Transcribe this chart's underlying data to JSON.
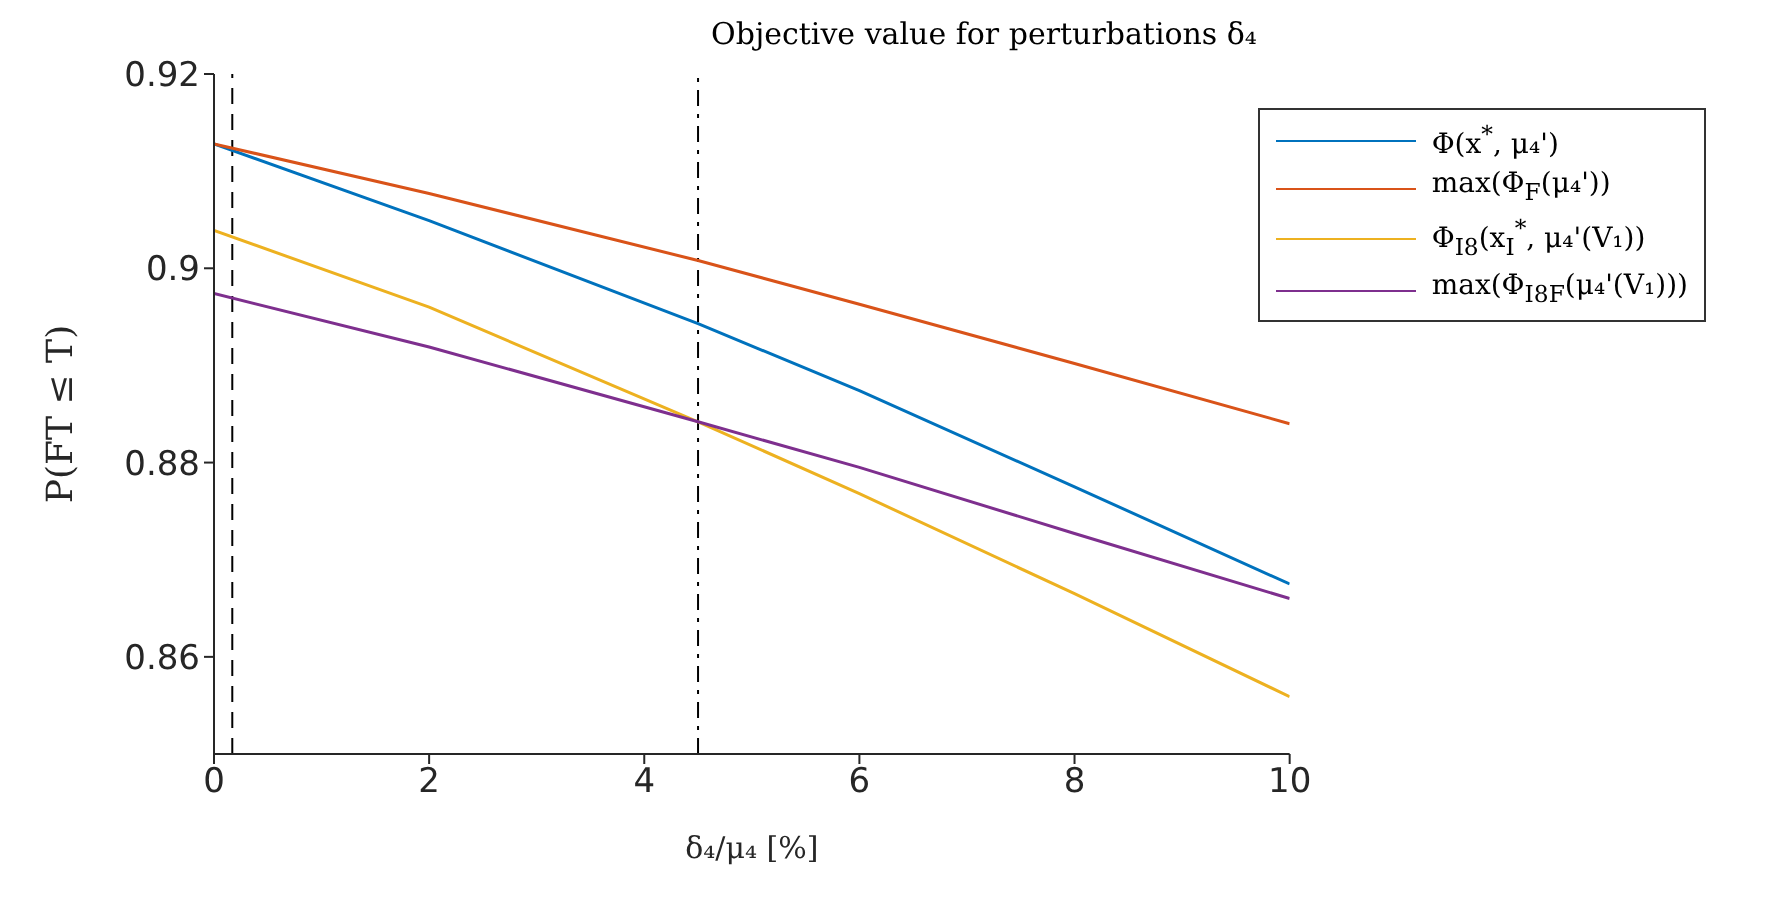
{
  "chart_data": {
    "type": "line",
    "title": "Objective value for perturbations δ₄",
    "xlabel": "δ₄/μ₄ [%]",
    "ylabel": "P(FT ≤ T)",
    "x": [
      0,
      2,
      4.5,
      6,
      8,
      10
    ],
    "series": [
      {
        "name": "Φ(x$^{*}$, μ₄')",
        "color": "#0072bd",
        "values": [
          0.9128,
          0.9049,
          0.8943,
          0.8874,
          0.8775,
          0.8675
        ]
      },
      {
        "name": "max(Φ$_{F}$(μ₄'))",
        "color": "#d95319",
        "values": [
          0.9128,
          0.9077,
          0.9008,
          0.8963,
          0.8902,
          0.884
        ]
      },
      {
        "name": "Φ$_{I8}$(x$_{I}$$^{*}$, μ₄'(V₁))",
        "color": "#edb120",
        "values": [
          0.9039,
          0.896,
          0.8842,
          0.8768,
          0.8665,
          0.8559
        ]
      },
      {
        "name": "max(Φ$_{I8F}$(μ₄'(V₁)))",
        "color": "#7e2f8e",
        "values": [
          0.8974,
          0.8919,
          0.8842,
          0.8795,
          0.8727,
          0.866
        ]
      }
    ],
    "xlim": [
      0,
      10
    ],
    "xticks": [
      0,
      2,
      4,
      6,
      8,
      10
    ],
    "ylim": [
      0.85,
      0.92
    ],
    "yticks": [
      0.86,
      0.88,
      0.9,
      0.92
    ],
    "ref_lines": [
      {
        "axis": "x",
        "value": 0.17,
        "color": "#000000",
        "line_style": "dashed"
      },
      {
        "axis": "x",
        "value": 4.5,
        "color": "#000000",
        "line_style": "dashdot"
      }
    ],
    "grid": false,
    "legend": "top right",
    "marker": "none",
    "line_style": "solid"
  }
}
